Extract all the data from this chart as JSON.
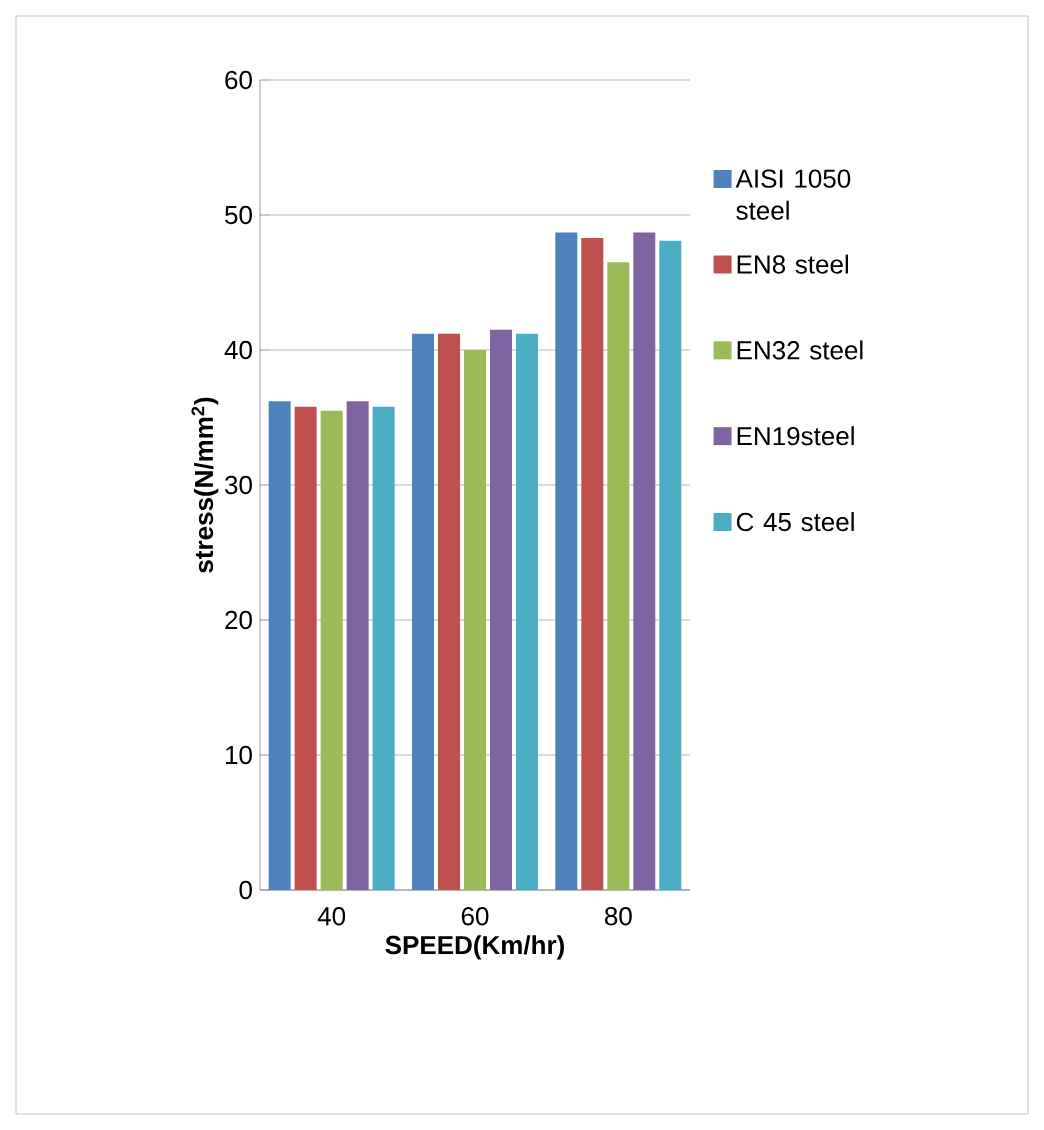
{
  "chart_data": {
    "type": "bar",
    "xlabel": "SPEED(Km/hr)",
    "ylabel": "stress(N/mm$^{2}$)",
    "categories": [
      "40",
      "60",
      "80"
    ],
    "series": [
      {
        "name": "AISI 1050 steel",
        "color": "#4f81bd",
        "values": [
          36.2,
          41.2,
          48.7
        ]
      },
      {
        "name": "EN8 steel",
        "color": "#c0504d",
        "values": [
          35.8,
          41.2,
          48.3
        ]
      },
      {
        "name": "EN32 steel",
        "color": "#9bbb59",
        "values": [
          35.5,
          40.0,
          46.5
        ]
      },
      {
        "name": "EN19steel",
        "color": "#8064a2",
        "values": [
          36.2,
          41.5,
          48.7
        ]
      },
      {
        "name": "C 45 steel",
        "color": "#4bacc6",
        "values": [
          35.8,
          41.2,
          48.1
        ]
      }
    ],
    "ylim": [
      0,
      60
    ],
    "yticks": [
      0,
      10,
      20,
      30,
      40,
      50,
      60
    ],
    "grid": "y",
    "legend": "right"
  }
}
